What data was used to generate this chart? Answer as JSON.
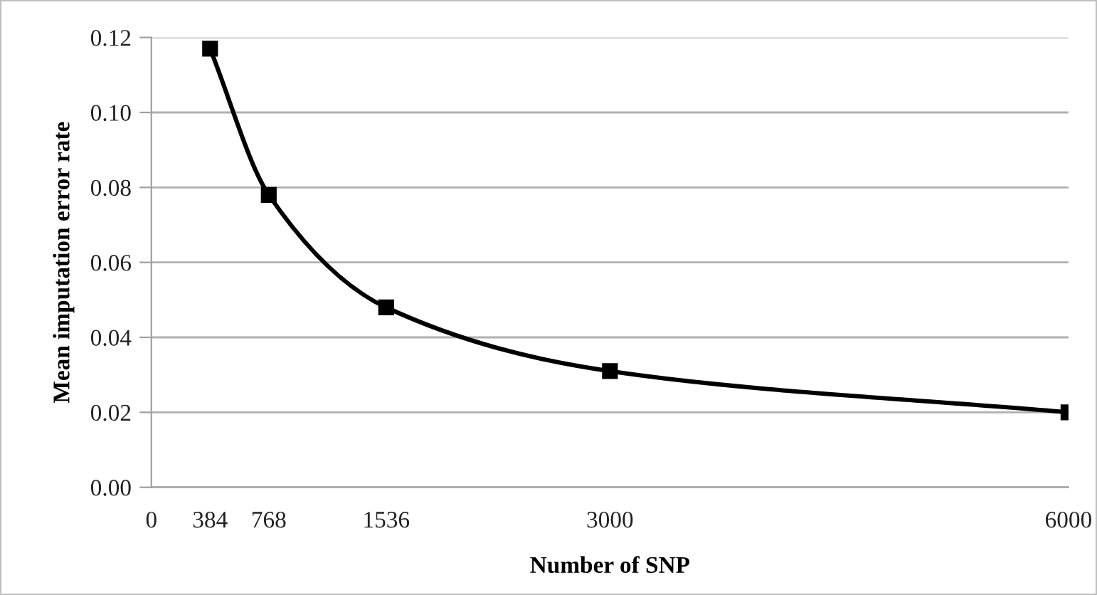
{
  "chart_data": {
    "type": "line",
    "xlabel": "Number of SNP",
    "ylabel": "Mean imputation error rate",
    "x": [
      384,
      768,
      1536,
      3000,
      6000
    ],
    "series": [
      {
        "color": "#000000",
        "values": [
          0.117,
          0.078,
          0.048,
          0.031,
          0.02
        ]
      }
    ],
    "xlim": [
      0,
      6000
    ],
    "xticks": [
      0,
      384,
      768,
      1536,
      3000,
      6000
    ],
    "ylim": [
      0,
      0.12
    ],
    "yticks": [
      {
        "value": 0,
        "label": "0.00"
      },
      {
        "value": 0.02,
        "label": "0.02"
      },
      {
        "value": 0.04,
        "label": "0.04"
      },
      {
        "value": 0.06,
        "label": "0.06"
      },
      {
        "value": 0.08,
        "label": "0.08"
      },
      {
        "value": 0.1,
        "label": "0.10"
      },
      {
        "value": 0.12,
        "label": "0.12"
      }
    ],
    "grid": "y",
    "marker": "square",
    "line_style": "solid",
    "legend": false
  }
}
